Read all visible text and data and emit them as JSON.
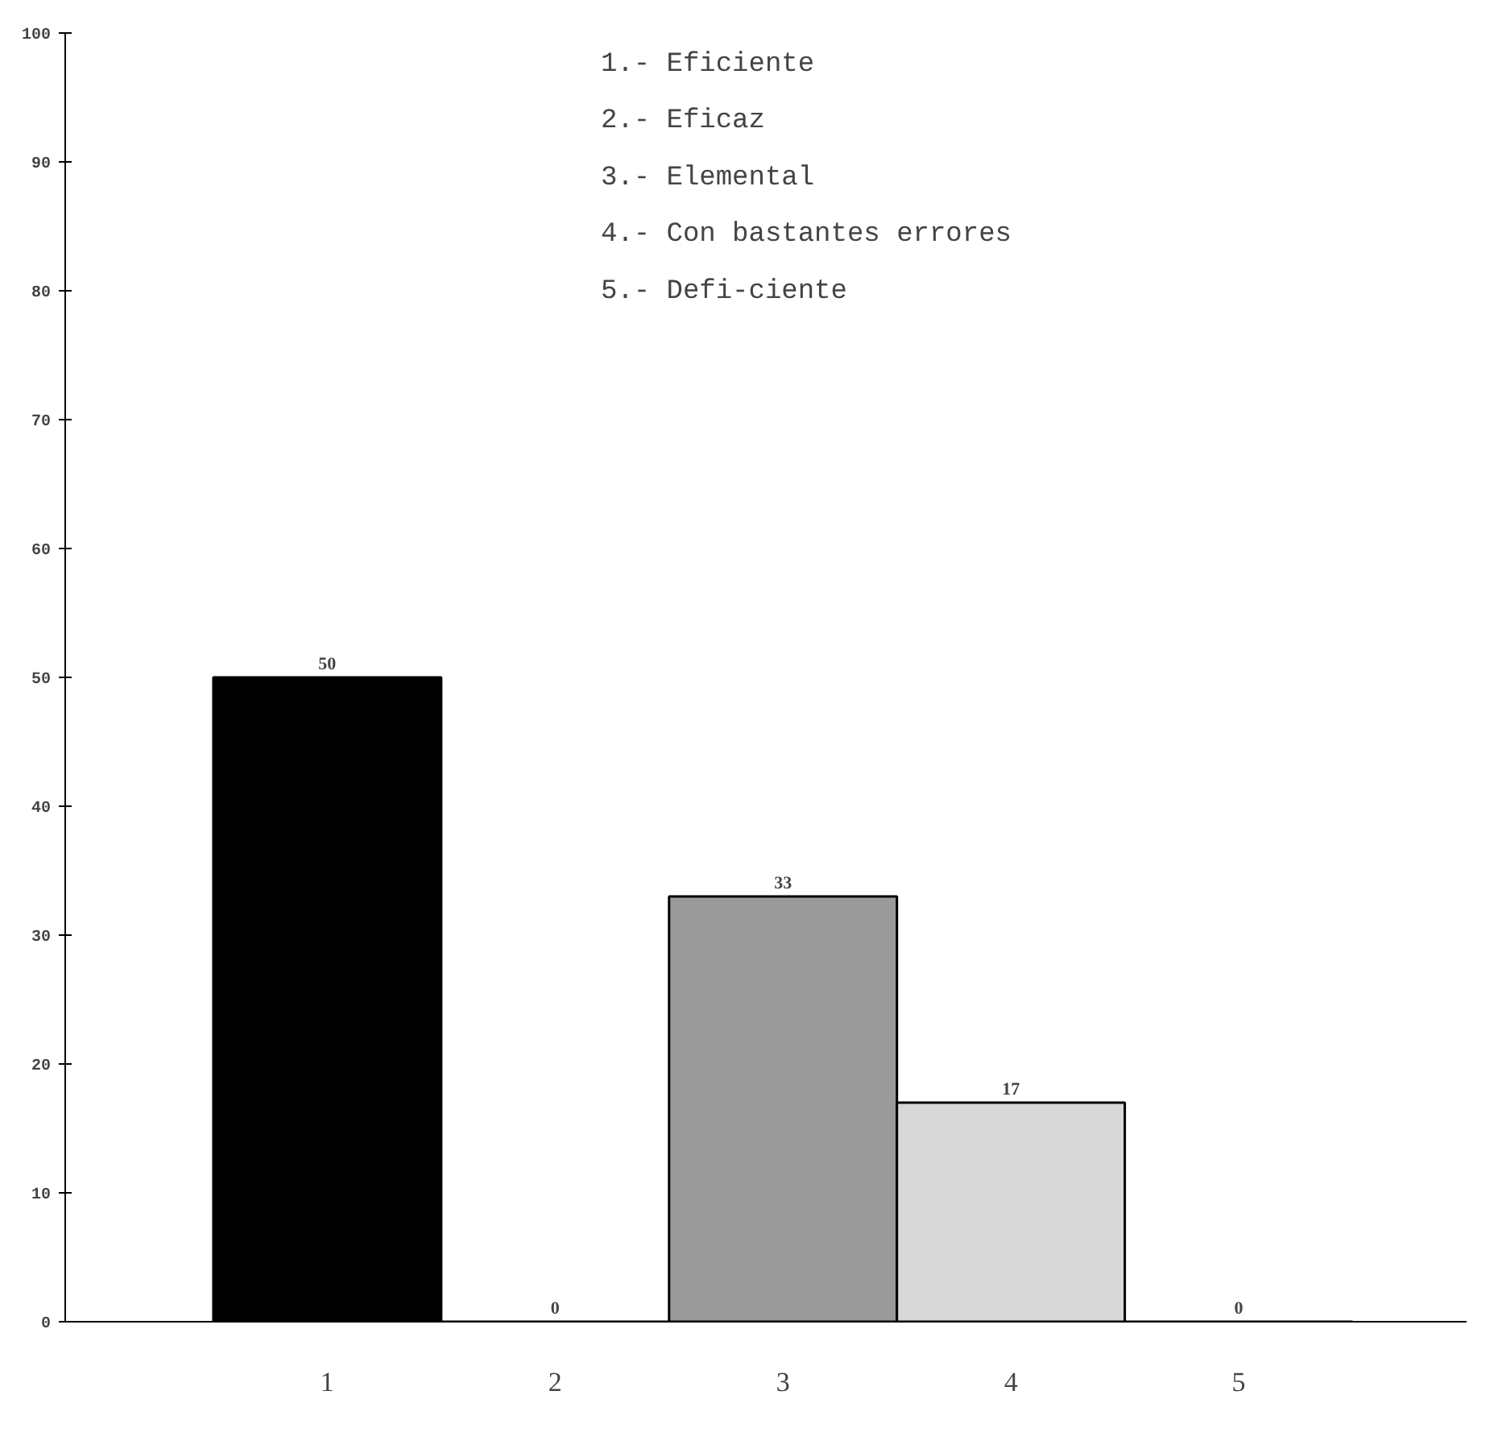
{
  "chart_data": {
    "type": "bar",
    "categories": [
      "1",
      "2",
      "3",
      "4",
      "5"
    ],
    "values": [
      50,
      0,
      33,
      17,
      0
    ],
    "colors": [
      "#000000",
      "#000000",
      "#9a9a9a",
      "#d8d8d8",
      "#000000"
    ],
    "ylim": [
      0,
      100
    ],
    "yticks": [
      0,
      10,
      20,
      30,
      40,
      50,
      60,
      70,
      80,
      90,
      100
    ],
    "data_labels": true,
    "grid": false,
    "annotations": [
      "1.- Eficiente",
      "2.- Eficaz",
      "3.- Elemental",
      "4.- Con bastantes errores",
      "5.- Defi-ciente"
    ]
  }
}
